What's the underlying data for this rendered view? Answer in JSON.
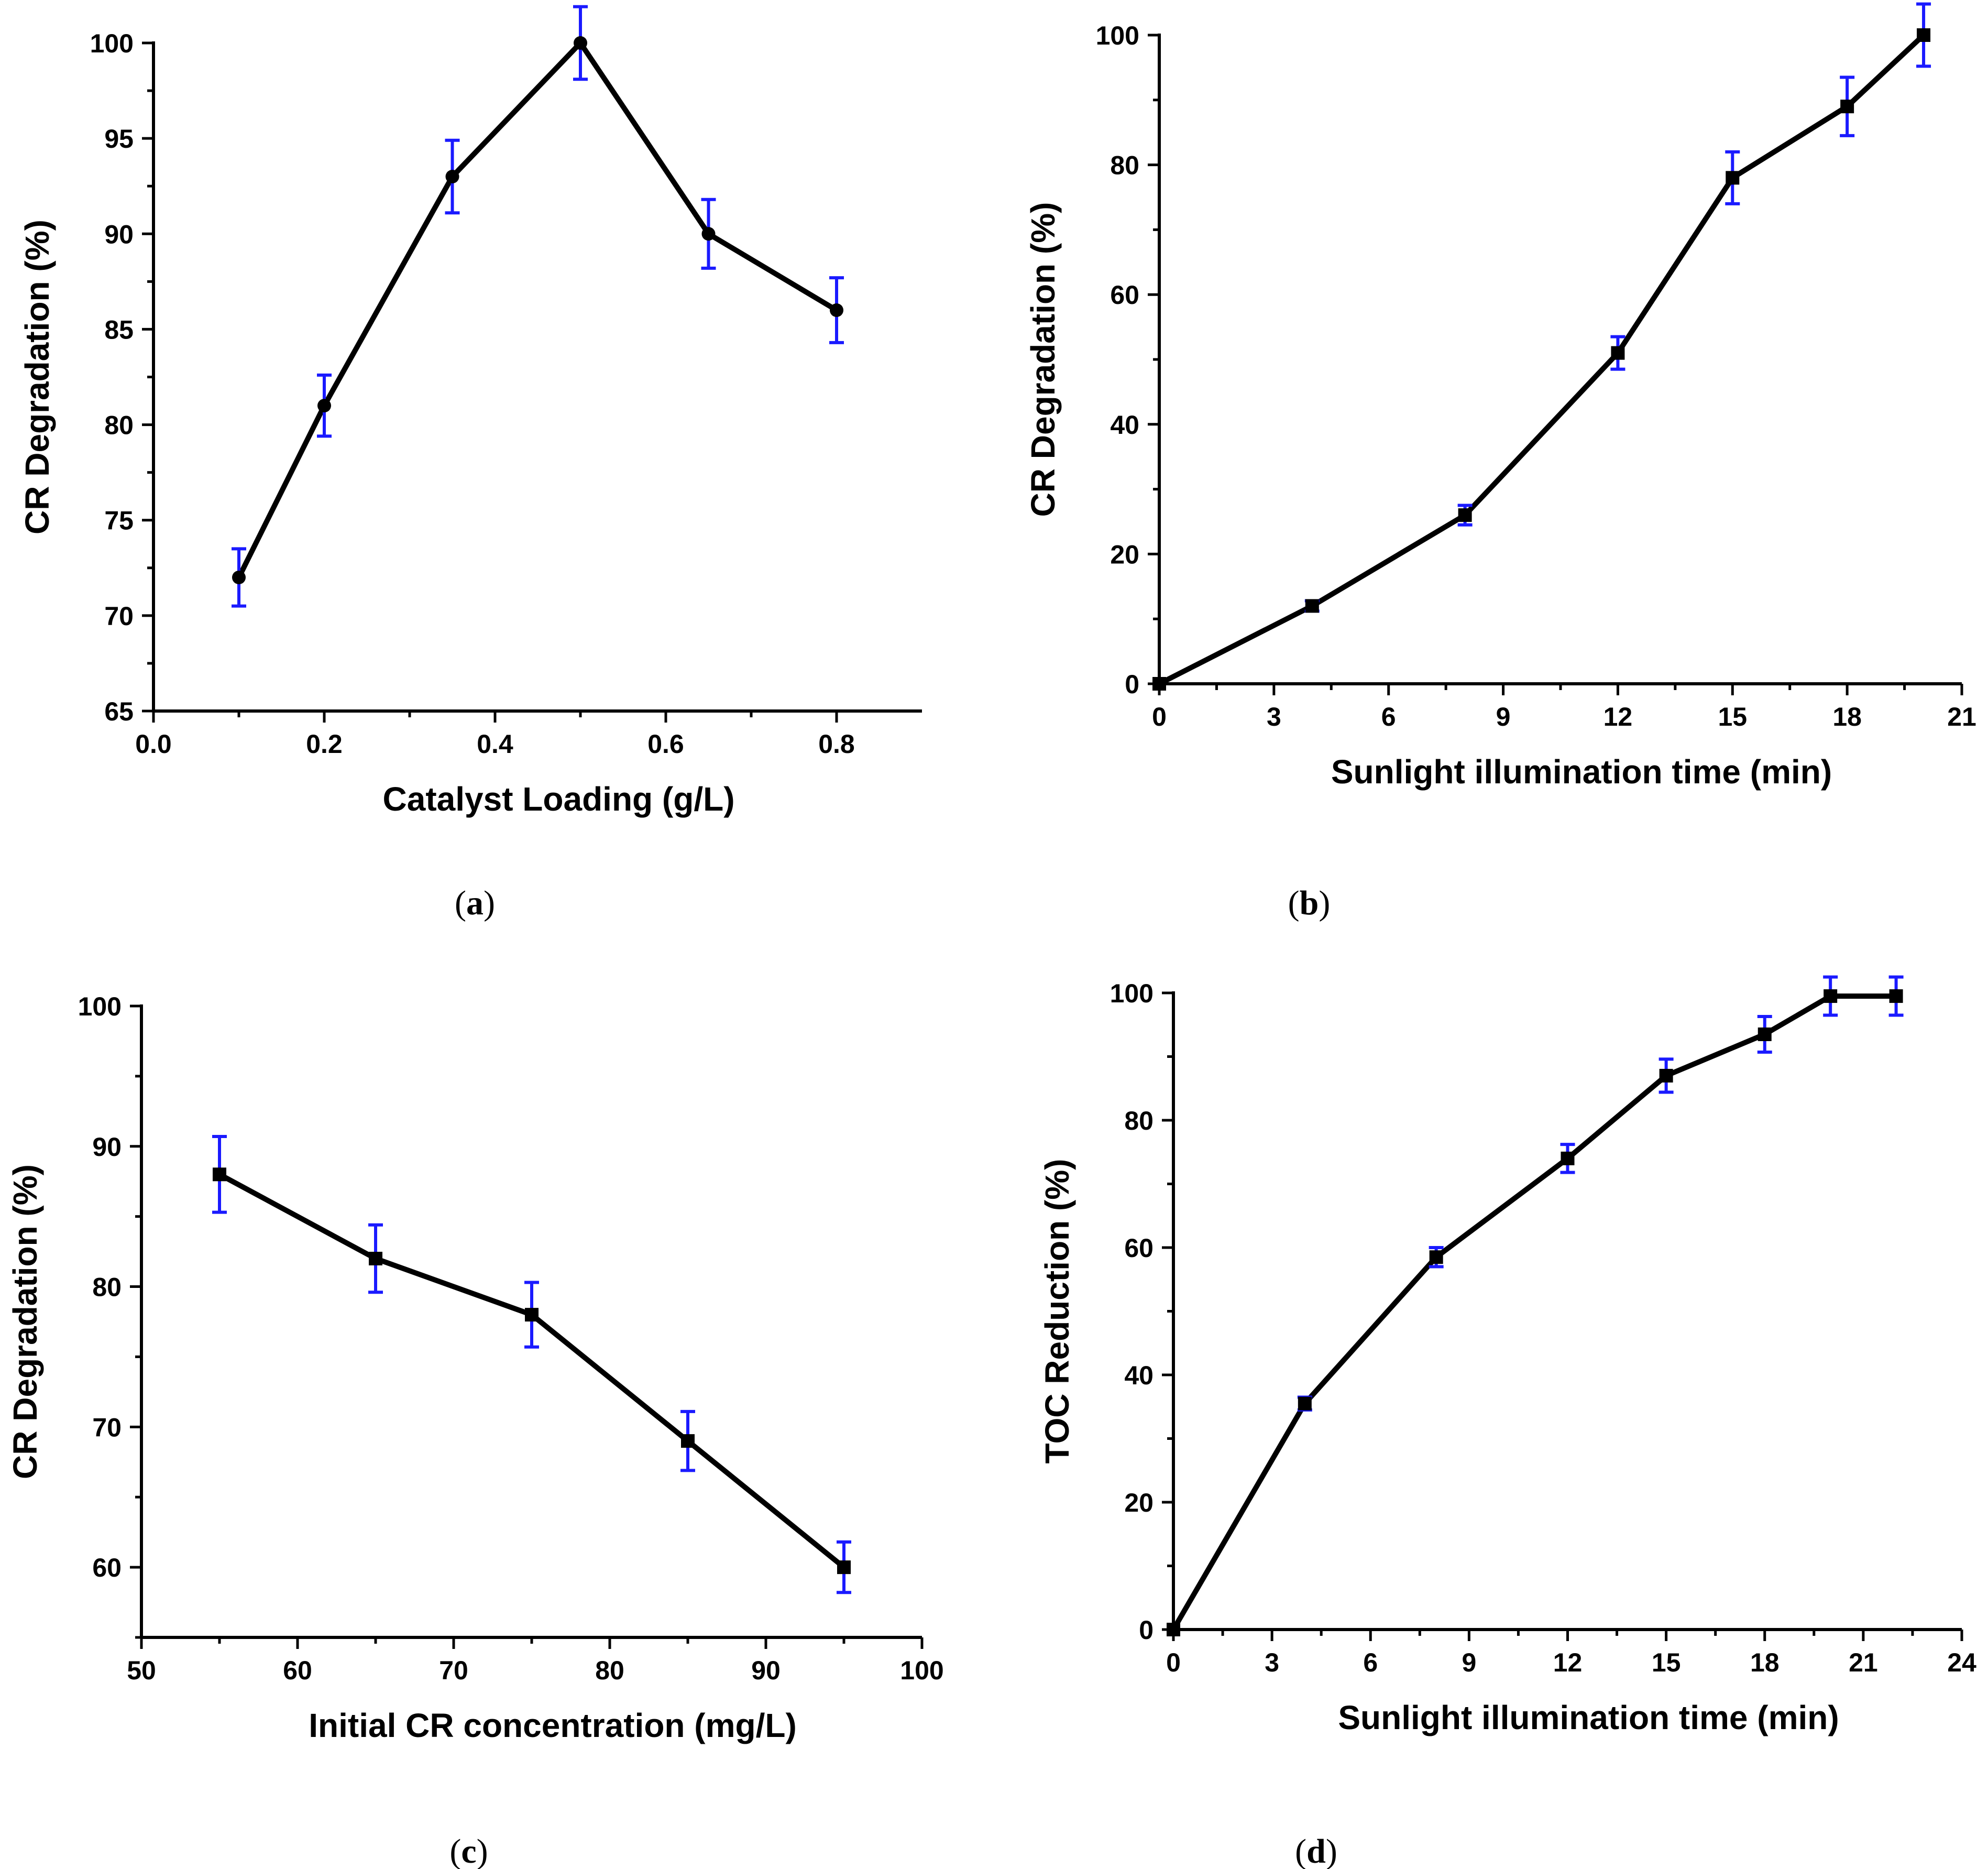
{
  "chart_data": [
    {
      "id": "a",
      "type": "line",
      "panel_label": "a",
      "xlabel": "Catalyst Loading (g/L)",
      "ylabel": "CR Degradation (%)",
      "xlim": [
        0.0,
        0.9
      ],
      "ylim": [
        65,
        100
      ],
      "xticks": [
        0.0,
        0.2,
        0.4,
        0.6,
        0.8
      ],
      "xtick_labels": [
        "0.0",
        "0.2",
        "0.4",
        "0.6",
        "0.8"
      ],
      "xminor": [
        0.1,
        0.3,
        0.5,
        0.7
      ],
      "yticks": [
        65,
        70,
        75,
        80,
        85,
        90,
        95,
        100
      ],
      "ytick_labels": [
        "65",
        "70",
        "75",
        "80",
        "85",
        "90",
        "95",
        "100"
      ],
      "yminor": [
        67.5,
        72.5,
        77.5,
        82.5,
        87.5,
        92.5,
        97.5
      ],
      "marker": "circle",
      "x": [
        0.1,
        0.2,
        0.35,
        0.5,
        0.65,
        0.8
      ],
      "y": [
        72,
        81,
        93,
        100,
        90,
        86
      ],
      "err": [
        1.5,
        1.6,
        1.9,
        1.9,
        1.8,
        1.7
      ]
    },
    {
      "id": "b",
      "type": "line",
      "panel_label": "b",
      "xlabel": "Sunlight illumination time (min)",
      "ylabel": "CR Degradation (%)",
      "xlim": [
        0,
        21
      ],
      "ylim": [
        0,
        100
      ],
      "xticks": [
        0,
        3,
        6,
        9,
        12,
        15,
        18,
        21
      ],
      "xtick_labels": [
        "0",
        "3",
        "6",
        "9",
        "12",
        "15",
        "18",
        "21"
      ],
      "xminor": [
        1.5,
        4.5,
        7.5,
        10.5,
        13.5,
        16.5,
        19.5
      ],
      "yticks": [
        0,
        20,
        40,
        60,
        80,
        100
      ],
      "ytick_labels": [
        "0",
        "20",
        "40",
        "60",
        "80",
        "100"
      ],
      "yminor": [
        10,
        30,
        50,
        70,
        90
      ],
      "marker": "square",
      "x": [
        0,
        4,
        8,
        12,
        15,
        18,
        20
      ],
      "y": [
        0,
        12,
        26,
        51,
        78,
        89,
        100
      ],
      "err": [
        0,
        0.8,
        1.5,
        2.5,
        4.0,
        4.5,
        4.8
      ]
    },
    {
      "id": "c",
      "type": "line",
      "panel_label": "c",
      "xlabel": "Initial CR concentration (mg/L)",
      "ylabel": "CR Degradation (%)",
      "xlim": [
        50,
        100
      ],
      "ylim": [
        55,
        100
      ],
      "xticks": [
        50,
        60,
        70,
        80,
        90,
        100
      ],
      "xtick_labels": [
        "50",
        "60",
        "70",
        "80",
        "90",
        "100"
      ],
      "xminor": [
        55,
        65,
        75,
        85,
        95
      ],
      "yticks": [
        60,
        70,
        80,
        90,
        100
      ],
      "ytick_labels": [
        "60",
        "70",
        "80",
        "90",
        "100"
      ],
      "yminor": [
        55,
        65,
        75,
        85,
        95
      ],
      "marker": "square",
      "x": [
        55,
        65,
        75,
        85,
        95
      ],
      "y": [
        88,
        82,
        78,
        69,
        60
      ],
      "err": [
        2.7,
        2.4,
        2.3,
        2.1,
        1.8
      ]
    },
    {
      "id": "d",
      "type": "line",
      "panel_label": "d",
      "xlabel": "Sunlight illumination time (min)",
      "ylabel": "TOC Reduction (%)",
      "xlim": [
        0,
        24
      ],
      "ylim": [
        0,
        100
      ],
      "xticks": [
        0,
        3,
        6,
        9,
        12,
        15,
        18,
        21,
        24
      ],
      "xtick_labels": [
        "0",
        "3",
        "6",
        "9",
        "12",
        "15",
        "18",
        "21",
        "24"
      ],
      "xminor": [
        1.5,
        4.5,
        7.5,
        10.5,
        13.5,
        16.5,
        19.5,
        22.5
      ],
      "yticks": [
        0,
        20,
        40,
        60,
        80,
        100
      ],
      "ytick_labels": [
        "0",
        "20",
        "40",
        "60",
        "80",
        "100"
      ],
      "yminor": [
        10,
        30,
        50,
        70,
        90
      ],
      "marker": "square",
      "x": [
        0,
        4,
        8,
        12,
        15,
        18,
        20,
        22
      ],
      "y": [
        0,
        35.5,
        58.5,
        74,
        87,
        93.5,
        99.5,
        99.5
      ],
      "err": [
        0,
        1.0,
        1.5,
        2.2,
        2.6,
        2.8,
        3.0,
        3.0
      ]
    }
  ]
}
